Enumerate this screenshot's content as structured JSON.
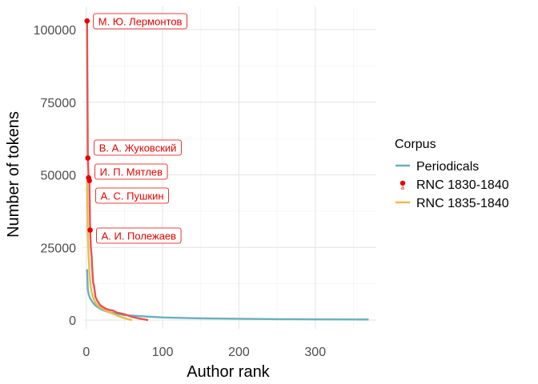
{
  "chart_data": {
    "type": "line",
    "xlabel": "Author rank",
    "ylabel": "Number of tokens",
    "xlim": [
      -4,
      380
    ],
    "ylim": [
      -3000,
      108000
    ],
    "x_ticks": [
      0,
      100,
      200,
      300
    ],
    "y_ticks": [
      0,
      25000,
      50000,
      75000,
      100000
    ],
    "y_tick_labels": [
      "0",
      "25000",
      "50000",
      "75000",
      "100000"
    ],
    "grid": true,
    "legend": {
      "title": "Corpus",
      "position": "right"
    },
    "series": [
      {
        "name": "Periodicals",
        "color": "#6BAFBF",
        "x": [
          1,
          2,
          3,
          5,
          8,
          12,
          20,
          30,
          50,
          80,
          100,
          150,
          200,
          250,
          300,
          350,
          370
        ],
        "values": [
          17500,
          10500,
          9000,
          7500,
          6200,
          5000,
          3600,
          2700,
          1700,
          1200,
          900,
          600,
          450,
          330,
          260,
          220,
          200
        ]
      },
      {
        "name": "RNC 1830-1840",
        "color": "#E8524F",
        "x": [
          1,
          2,
          3,
          4,
          5,
          6,
          7,
          8,
          9,
          10,
          12,
          14,
          16,
          18,
          20,
          25,
          30,
          35,
          40,
          50,
          60,
          70,
          81
        ],
        "values": [
          103000,
          55800,
          49000,
          48000,
          31000,
          25000,
          22000,
          16500,
          12800,
          12000,
          8000,
          6800,
          6000,
          5200,
          4800,
          4000,
          3500,
          3300,
          2600,
          2000,
          1100,
          500,
          0
        ]
      },
      {
        "name": "RNC 1835-1840",
        "color": "#E9BC4C",
        "x": [
          1,
          2,
          3,
          4,
          5,
          6,
          7,
          8,
          10,
          12,
          15,
          20,
          25,
          30,
          35,
          40,
          45,
          50,
          55,
          60
        ],
        "values": [
          47500,
          30000,
          22000,
          17000,
          13500,
          11000,
          9500,
          8500,
          7000,
          6000,
          5000,
          4000,
          3300,
          2700,
          2200,
          1600,
          1100,
          700,
          300,
          0
        ]
      }
    ],
    "annotations": [
      {
        "series": "RNC 1830-1840",
        "x": 1,
        "y": 103000,
        "text": "М. Ю. Лермонтов"
      },
      {
        "series": "RNC 1830-1840",
        "x": 2,
        "y": 55800,
        "text": "В. А. Жуковский"
      },
      {
        "series": "RNC 1830-1840",
        "x": 3,
        "y": 49000,
        "text": "И. П. Мятлев"
      },
      {
        "series": "RNC 1830-1840",
        "x": 4,
        "y": 48000,
        "text": "А. С. Пушкин"
      },
      {
        "series": "RNC 1830-1840",
        "x": 5,
        "y": 31000,
        "text": "А. И. Полежаев"
      }
    ]
  }
}
